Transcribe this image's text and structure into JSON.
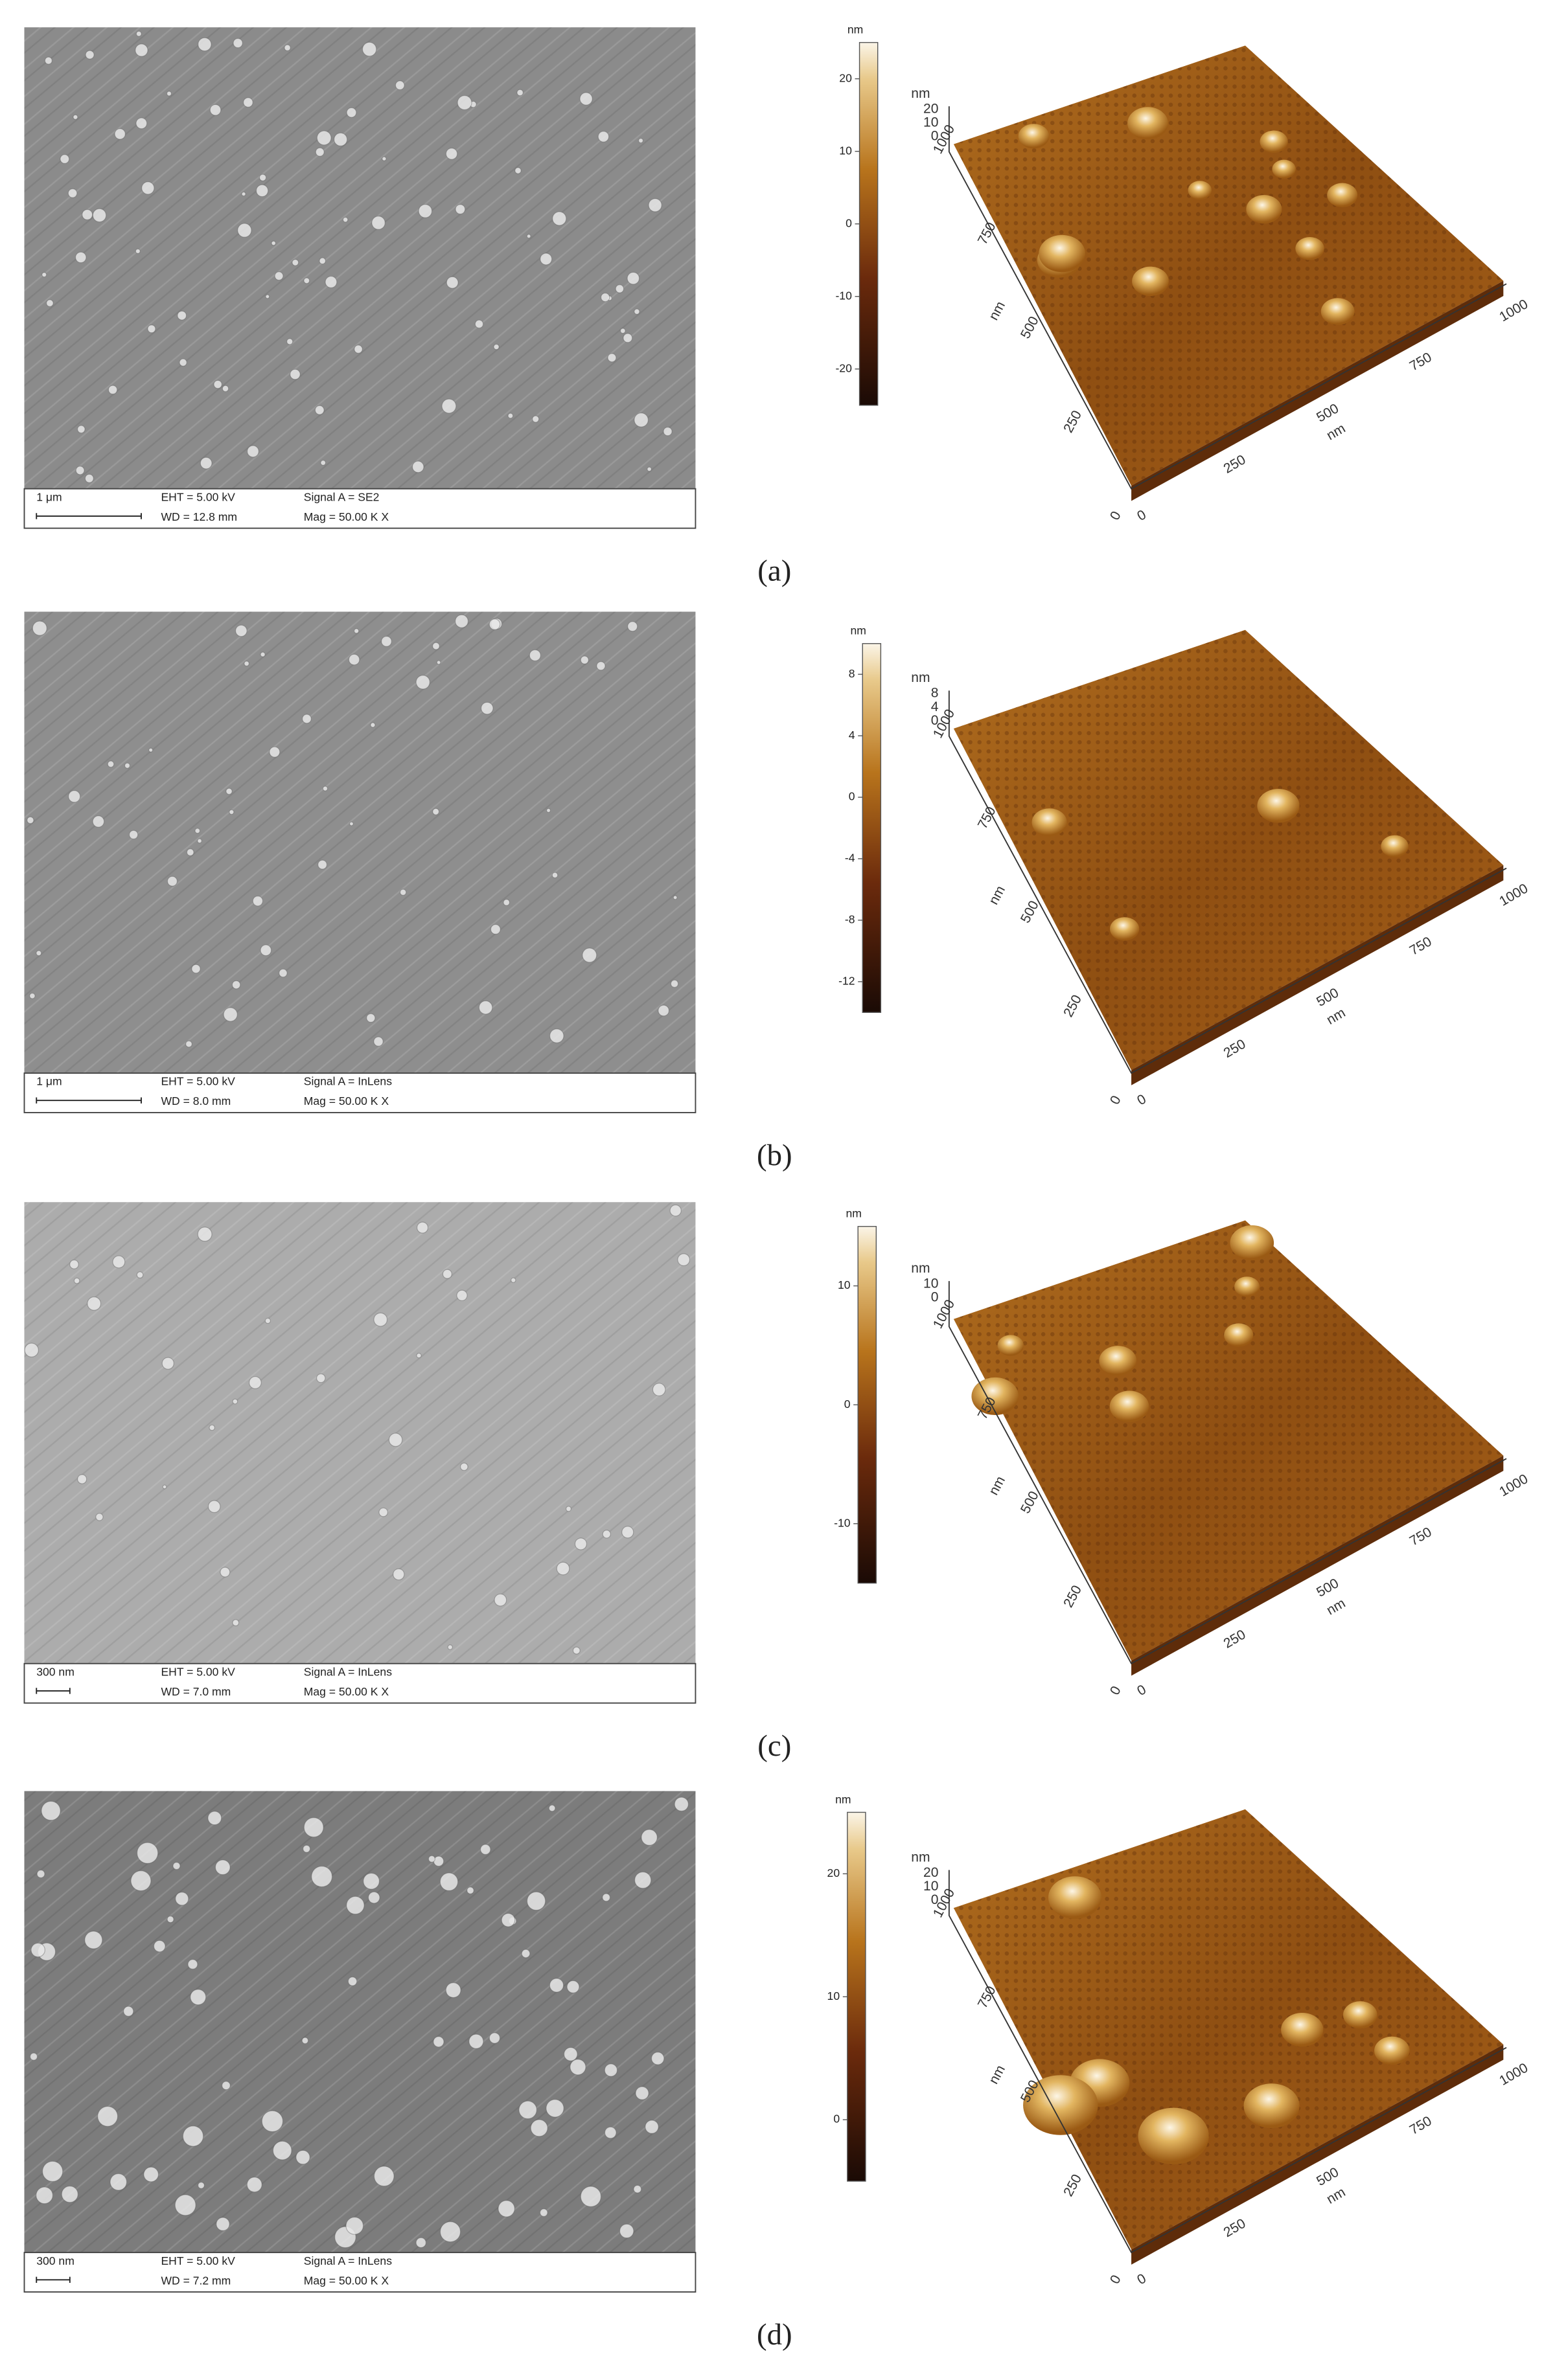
{
  "panels": [
    {
      "label": "(a)",
      "sem": {
        "scale": "1 μm",
        "eht": "EHT = 5.00 kV",
        "wd": "WD = 12.8 mm",
        "signal": "Signal A = SE2",
        "mag": "Mag = 50.00 K X"
      },
      "afm": {
        "unit": "nm",
        "colorbar_ticks": [
          "20",
          "10",
          "0",
          "-10",
          "-20"
        ],
        "z_ticks": [
          "20",
          "10",
          "0"
        ],
        "x_ticks": [
          "0",
          "250",
          "500",
          "750",
          "1000"
        ],
        "y_ticks": [
          "0",
          "250",
          "500",
          "750",
          "1000"
        ],
        "x_label": "nm",
        "y_label": "nm",
        "z_label": "nm"
      }
    },
    {
      "label": "(b)",
      "sem": {
        "scale": "1 μm",
        "eht": "EHT = 5.00 kV",
        "wd": "WD = 8.0 mm",
        "signal": "Signal A = InLens",
        "mag": "Mag = 50.00 K X"
      },
      "afm": {
        "unit": "nm",
        "colorbar_ticks": [
          "8",
          "4",
          "0",
          "-4",
          "-8",
          "-12"
        ],
        "z_ticks": [
          "8",
          "4",
          "0"
        ],
        "x_ticks": [
          "0",
          "250",
          "500",
          "750",
          "1000"
        ],
        "y_ticks": [
          "0",
          "250",
          "500",
          "750",
          "1000"
        ],
        "x_label": "nm",
        "y_label": "nm",
        "z_label": "nm"
      }
    },
    {
      "label": "(c)",
      "sem": {
        "scale": "300 nm",
        "eht": "EHT = 5.00 kV",
        "wd": "WD = 7.0 mm",
        "signal": "Signal A = InLens",
        "mag": "Mag = 50.00 K X"
      },
      "afm": {
        "unit": "nm",
        "colorbar_ticks": [
          "10",
          "0",
          "-10"
        ],
        "z_ticks": [
          "10",
          "0"
        ],
        "x_ticks": [
          "0",
          "250",
          "500",
          "750",
          "1000"
        ],
        "y_ticks": [
          "0",
          "250",
          "500",
          "750",
          "1000"
        ],
        "x_label": "nm",
        "y_label": "nm",
        "z_label": "nm"
      }
    },
    {
      "label": "(d)",
      "sem": {
        "scale": "300 nm",
        "eht": "EHT = 5.00 kV",
        "wd": "WD = 7.2 mm",
        "signal": "Signal A = InLens",
        "mag": "Mag = 50.00 K X"
      },
      "afm": {
        "unit": "nm",
        "colorbar_ticks": [
          "20",
          "10",
          "0"
        ],
        "z_ticks": [
          "20",
          "10",
          "0"
        ],
        "x_ticks": [
          "0",
          "250",
          "500",
          "750",
          "1000"
        ],
        "y_ticks": [
          "0",
          "250",
          "500",
          "750",
          "1000"
        ],
        "x_label": "nm",
        "y_label": "nm",
        "z_label": "nm"
      }
    }
  ]
}
